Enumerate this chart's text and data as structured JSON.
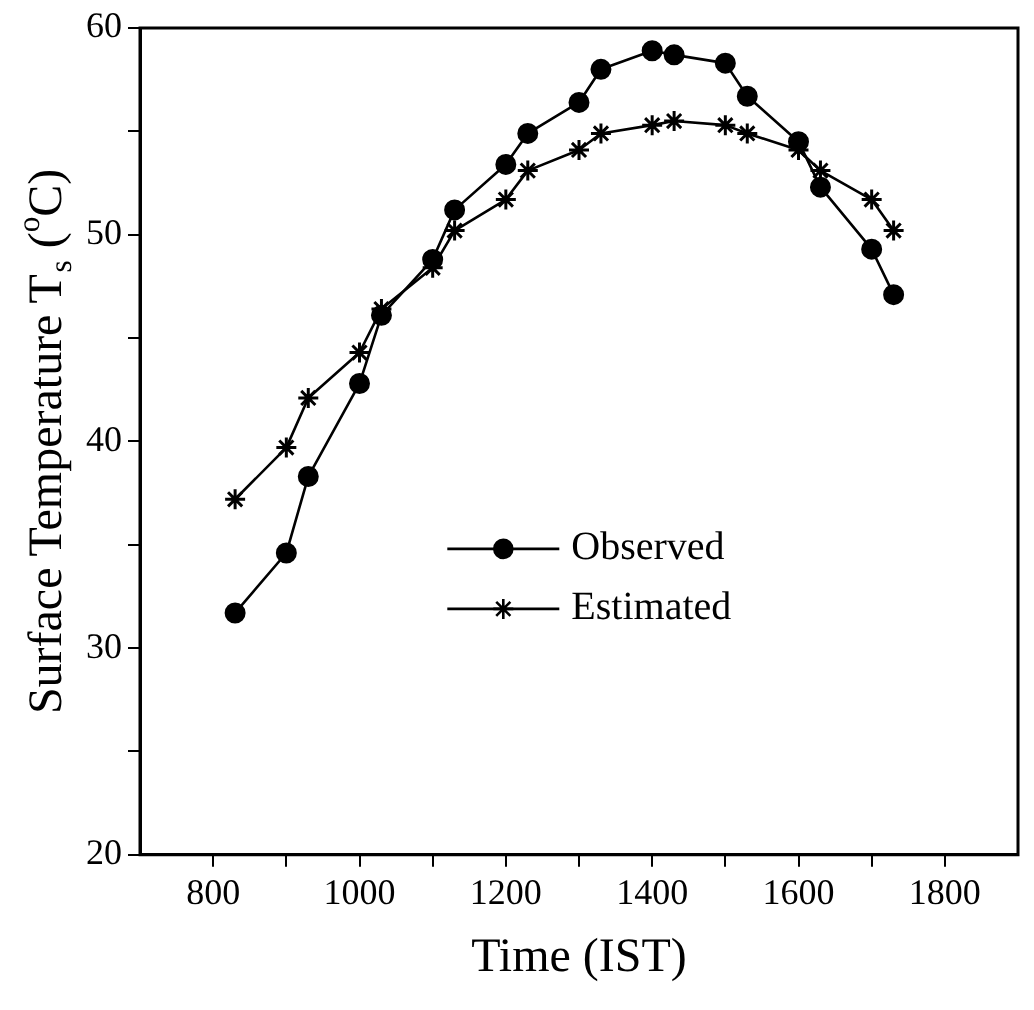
{
  "chart_data": {
    "type": "line",
    "xlabel": "Time (IST)",
    "ylabel": "Surface Temperature T$_{s}$ ($^{o}$C)",
    "x": [
      830,
      900,
      930,
      1000,
      1030,
      1100,
      1130,
      1200,
      1230,
      1300,
      1330,
      1400,
      1430,
      1500,
      1530,
      1600,
      1630,
      1700,
      1730
    ],
    "series": [
      {
        "name": "Observed",
        "color": "#000000",
        "marker": "circle",
        "values": [
          31.7,
          34.6,
          38.3,
          42.8,
          46.1,
          48.8,
          51.2,
          53.4,
          54.9,
          56.4,
          58.0,
          58.9,
          58.7,
          58.3,
          56.7,
          54.5,
          52.3,
          49.3,
          47.1
        ]
      },
      {
        "name": "Estimated",
        "color": "#000000",
        "marker": "cross",
        "values": [
          37.2,
          39.7,
          42.1,
          44.3,
          46.4,
          48.4,
          50.2,
          51.7,
          53.1,
          54.1,
          54.9,
          55.3,
          55.5,
          55.3,
          54.9,
          54.1,
          53.1,
          51.7,
          50.2
        ]
      }
    ],
    "xlim": [
      700,
      1900
    ],
    "xticks": [
      800,
      {
        "value": 900,
        "label": null
      },
      1000,
      {
        "value": 1100,
        "label": null
      },
      1200,
      {
        "value": 1300,
        "label": null
      },
      1400,
      {
        "value": 1500,
        "label": null
      },
      1600,
      {
        "value": 1700,
        "label": null
      },
      1800
    ],
    "ylim": [
      20,
      60
    ],
    "yticks": [
      20,
      {
        "value": 25,
        "label": null
      },
      30,
      {
        "value": 35,
        "label": null
      },
      40,
      {
        "value": 45,
        "label": null
      },
      50,
      {
        "value": 55,
        "label": null
      },
      60
    ],
    "grid": false,
    "legend": "bottom",
    "line_style": "solid"
  }
}
